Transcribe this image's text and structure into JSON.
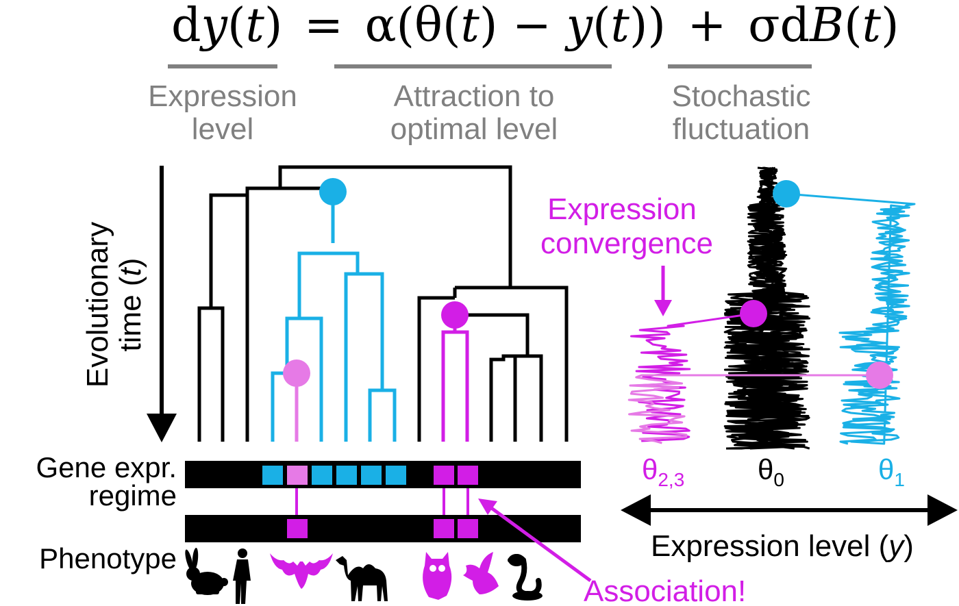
{
  "equation": {
    "lhs_d": "d",
    "lhs_y": "y",
    "lhs_open": "(",
    "lhs_t": "t",
    "lhs_close": ")",
    "equals": "=",
    "alpha_part": "α(θ(",
    "mid_t1": "t",
    "minus": ") −",
    "mid_y": "y",
    "mid_open": "(",
    "mid_t2": "t",
    "mid_close": "))",
    "plus": "+",
    "sigma_d": "σd",
    "B": "B",
    "b_open": "(",
    "b_t": "t",
    "b_close": ")"
  },
  "terms": {
    "expression_level_1": "Expression",
    "expression_level_2": "level",
    "attraction_1": "Attraction to",
    "attraction_2": "optimal level",
    "stochastic_1": "Stochastic",
    "stochastic_2": "fluctuation"
  },
  "axis": {
    "time_label_1": "Evolutionary",
    "time_label_2_prefix": "time (",
    "time_label_2_var": "t",
    "time_label_2_suffix": ")",
    "expression_axis_prefix": "Expression level (",
    "expression_axis_var": "y",
    "expression_axis_suffix": ")"
  },
  "rows": {
    "gene_expr_1": "Gene expr.",
    "gene_expr_2": "regime",
    "phenotype": "Phenotype"
  },
  "annotations": {
    "convergence_1": "Expression",
    "convergence_2": "convergence",
    "association": "Association!"
  },
  "optima": {
    "theta23_base": "θ",
    "theta23_sub": "2,3",
    "theta0_base": "θ",
    "theta0_sub": "0",
    "theta1_base": "θ",
    "theta1_sub": "1"
  },
  "colors": {
    "black": "#000000",
    "cyan": "#1ab0e6",
    "magenta": "#d21ee6",
    "pink": "#e67ae6",
    "gray": "#808080"
  }
}
